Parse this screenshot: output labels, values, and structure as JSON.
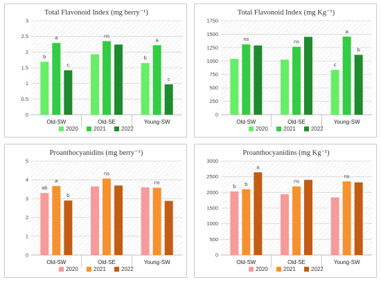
{
  "chart_data": [
    {
      "type": "bar",
      "title": "Total Flavonoid Index (mg berry⁻¹)",
      "categories": [
        "Old-SW",
        "Old-SE",
        "Young-SW"
      ],
      "ylim": [
        0,
        3
      ],
      "yticks": [
        "0",
        "0.5",
        "1",
        "1.5",
        "2",
        "2.5",
        "3"
      ],
      "grid": true,
      "legend_position": "bottom",
      "series": [
        {
          "name": "2020",
          "color": "#66ee66",
          "values": [
            1.69,
            1.93,
            1.65
          ]
        },
        {
          "name": "2021",
          "color": "#33cc44",
          "values": [
            2.29,
            2.35,
            2.22
          ]
        },
        {
          "name": "2022",
          "color": "#1f8a2e",
          "values": [
            1.42,
            2.24,
            0.97
          ]
        }
      ],
      "labels": [
        {
          "category": 0,
          "series": 0,
          "text": "b"
        },
        {
          "category": 0,
          "series": 1,
          "text": "a"
        },
        {
          "category": 0,
          "series": 2,
          "text": "c"
        },
        {
          "category": 1,
          "series": 1,
          "text": "ns"
        },
        {
          "category": 2,
          "series": 0,
          "text": "b"
        },
        {
          "category": 2,
          "series": 1,
          "text": "a"
        },
        {
          "category": 2,
          "series": 2,
          "text": "c"
        }
      ]
    },
    {
      "type": "bar",
      "title": "Total Flavonoid Index (mg Kg⁻¹)",
      "categories": [
        "Old-SW",
        "Old-SE",
        "Young-SW"
      ],
      "ylim": [
        0,
        1750
      ],
      "yticks": [
        "0",
        "250",
        "500",
        "750",
        "1000",
        "1250",
        "1500",
        "1750"
      ],
      "grid": true,
      "legend_position": "bottom",
      "series": [
        {
          "name": "2020",
          "color": "#66ee66",
          "values": [
            1040,
            1025,
            835
          ]
        },
        {
          "name": "2021",
          "color": "#33cc44",
          "values": [
            1310,
            1265,
            1455
          ]
        },
        {
          "name": "2022",
          "color": "#1f8a2e",
          "values": [
            1290,
            1450,
            1115
          ]
        }
      ],
      "labels": [
        {
          "category": 0,
          "series": 1,
          "text": "ns"
        },
        {
          "category": 1,
          "series": 1,
          "text": "ns"
        },
        {
          "category": 2,
          "series": 0,
          "text": "c"
        },
        {
          "category": 2,
          "series": 1,
          "text": "a"
        },
        {
          "category": 2,
          "series": 2,
          "text": "b"
        }
      ]
    },
    {
      "type": "bar",
      "title": "Proanthocyanidins (mg berry⁻¹)",
      "categories": [
        "Old-SW",
        "Old-SE",
        "Young-SW"
      ],
      "ylim": [
        0,
        5
      ],
      "yticks": [
        "0",
        "1",
        "2",
        "3",
        "4",
        "5"
      ],
      "grid": true,
      "legend_position": "bottom",
      "series": [
        {
          "name": "2020",
          "color": "#f79a9a",
          "values": [
            3.3,
            3.65,
            3.6
          ]
        },
        {
          "name": "2021",
          "color": "#f5912e",
          "values": [
            3.67,
            4.07,
            3.58
          ]
        },
        {
          "name": "2022",
          "color": "#c35d14",
          "values": [
            2.9,
            3.7,
            2.88
          ]
        }
      ],
      "labels": [
        {
          "category": 0,
          "series": 0,
          "text": "ab"
        },
        {
          "category": 0,
          "series": 1,
          "text": "a"
        },
        {
          "category": 0,
          "series": 2,
          "text": "b"
        },
        {
          "category": 1,
          "series": 1,
          "text": "ns"
        },
        {
          "category": 2,
          "series": 1,
          "text": "ns"
        }
      ]
    },
    {
      "type": "bar",
      "title": "Proanthocyanidins (mg Kg⁻¹)",
      "categories": [
        "Old-SW",
        "Old-SE",
        "Young-SW"
      ],
      "ylim": [
        0,
        3000
      ],
      "yticks": [
        "0",
        "500",
        "1000",
        "1500",
        "2000",
        "2500",
        "3000"
      ],
      "grid": true,
      "legend_position": "bottom",
      "series": [
        {
          "name": "2020",
          "color": "#f79a9a",
          "values": [
            2030,
            1940,
            1840
          ]
        },
        {
          "name": "2021",
          "color": "#f5912e",
          "values": [
            2100,
            2190,
            2350
          ]
        },
        {
          "name": "2022",
          "color": "#c35d14",
          "values": [
            2640,
            2400,
            2320
          ]
        }
      ],
      "labels": [
        {
          "category": 0,
          "series": 0,
          "text": "b"
        },
        {
          "category": 0,
          "series": 1,
          "text": "b"
        },
        {
          "category": 0,
          "series": 2,
          "text": "a"
        },
        {
          "category": 1,
          "series": 1,
          "text": "ns"
        },
        {
          "category": 2,
          "series": 1,
          "text": "ns"
        }
      ]
    }
  ]
}
